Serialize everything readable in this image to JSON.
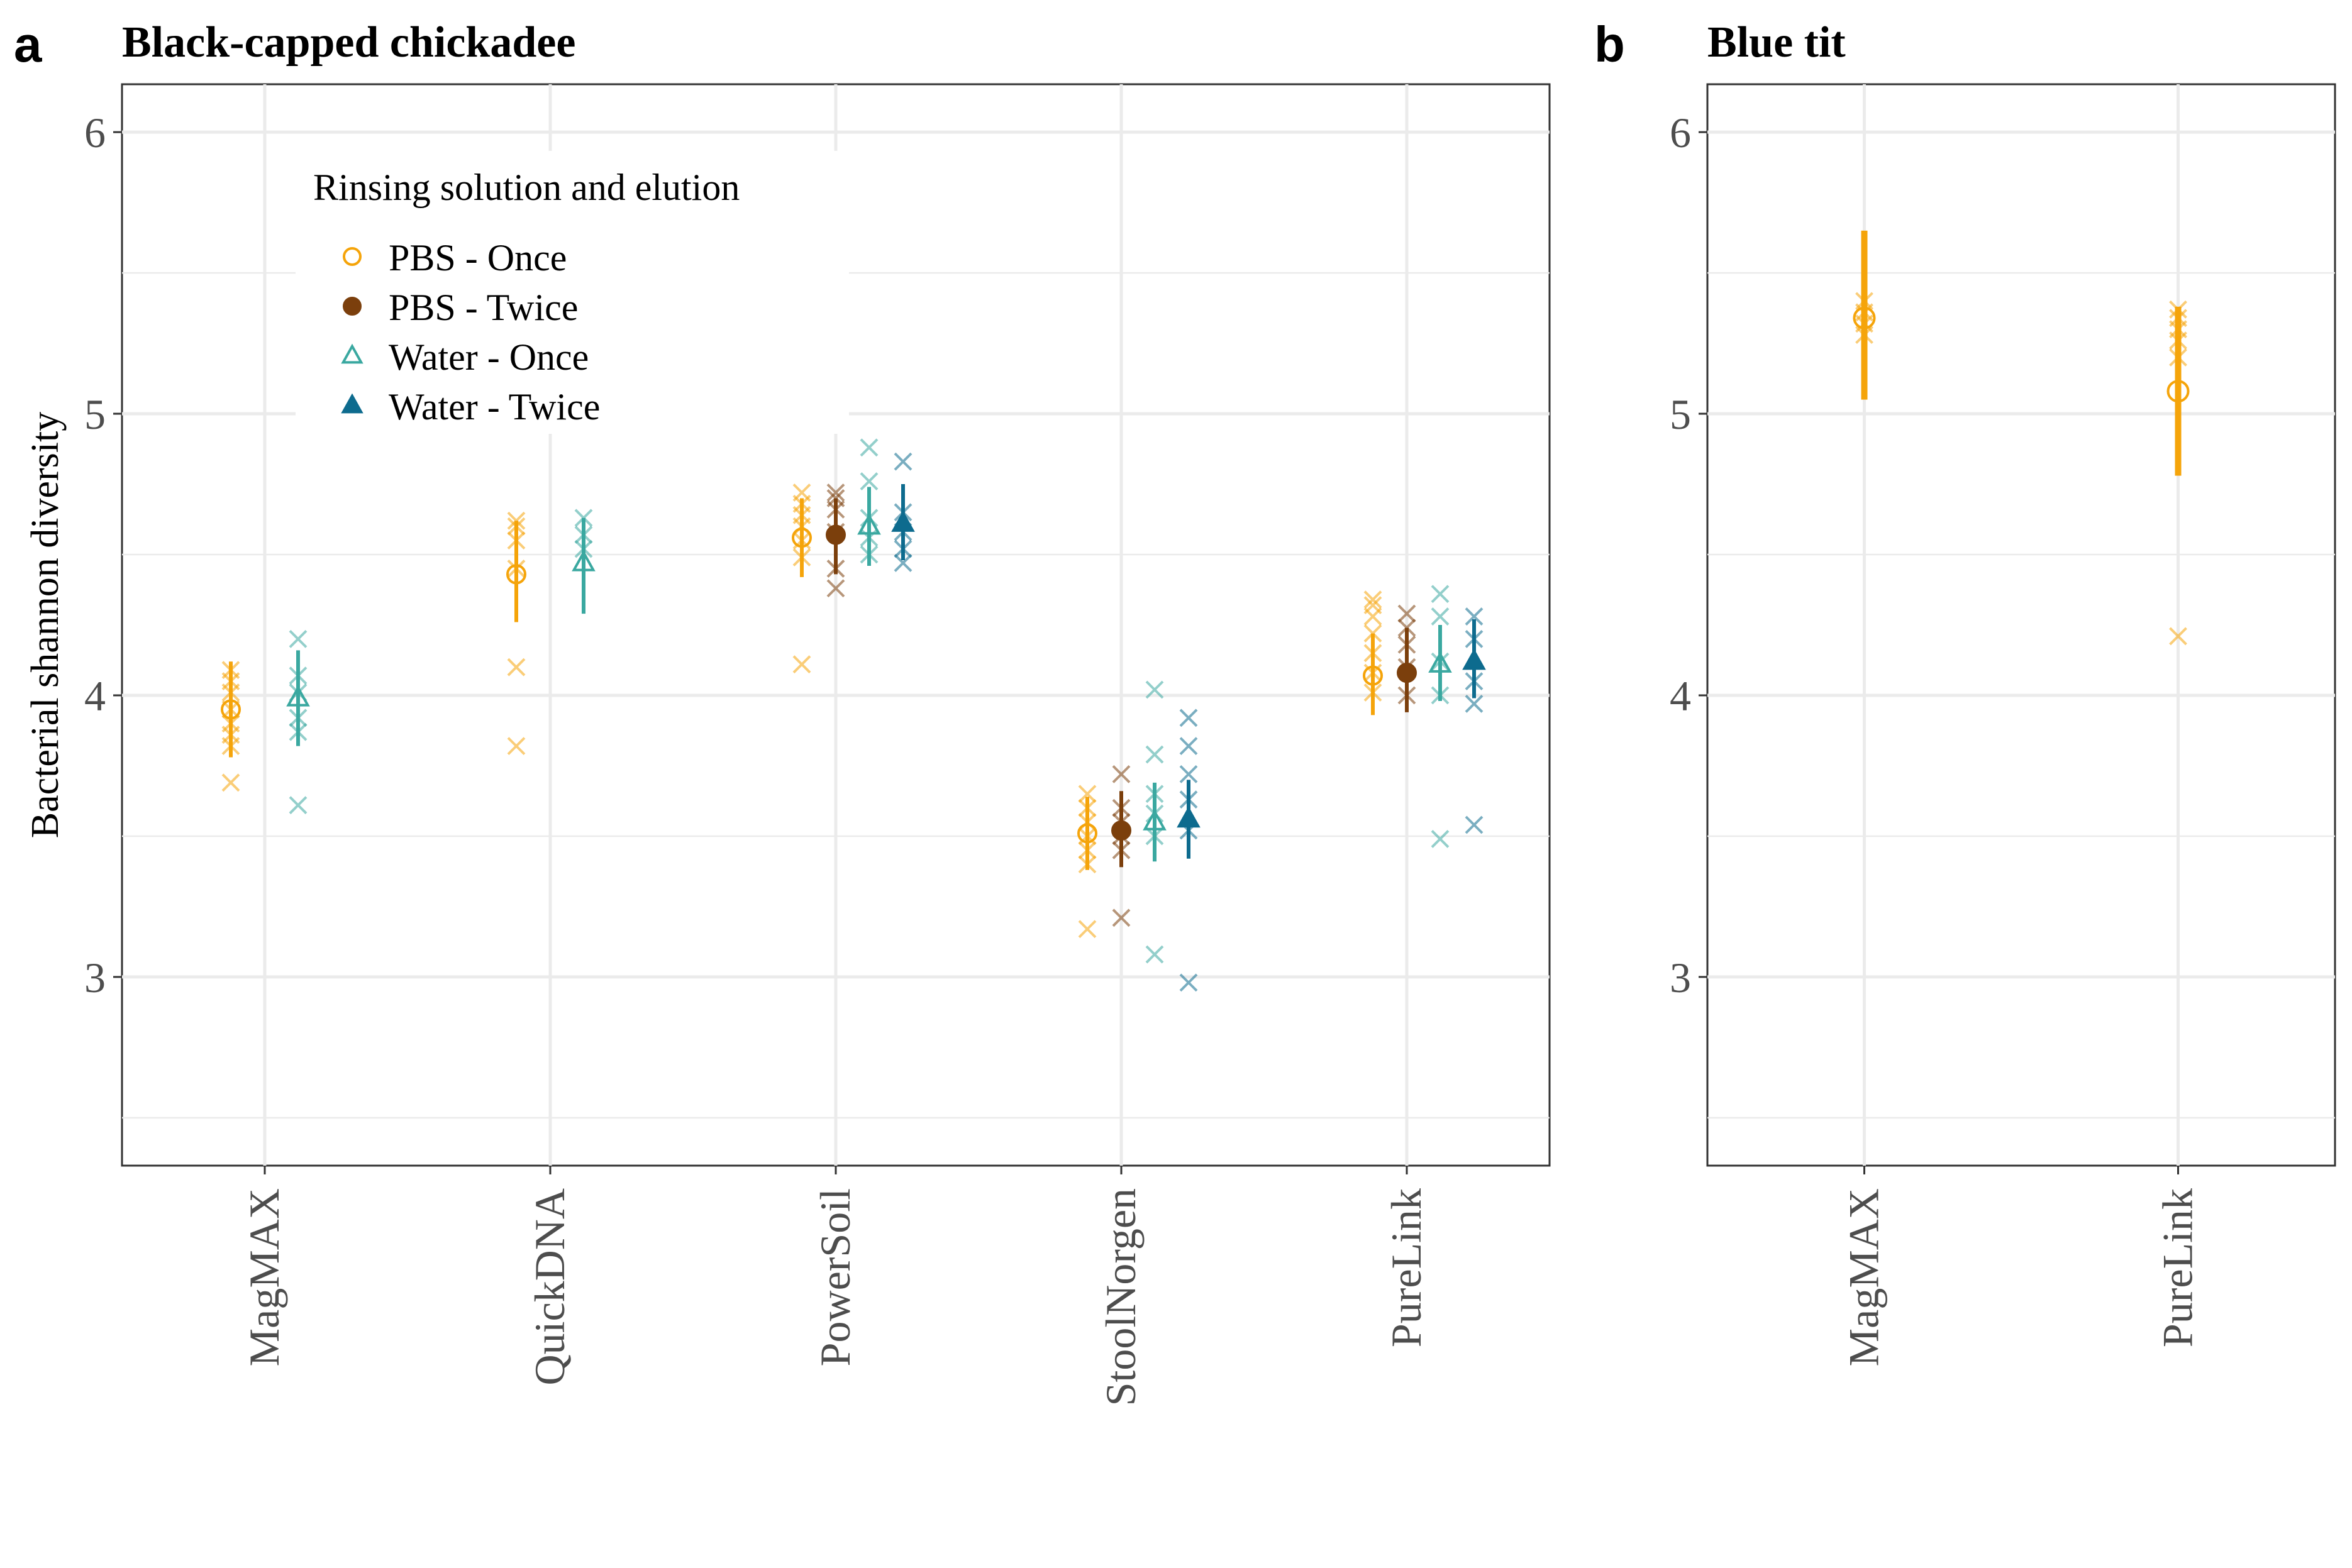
{
  "figure": {
    "y_axis_label": "Bacterial shannon diversity",
    "legend": {
      "title": "Rinsing solution and elution",
      "placement": "top-left inside panel a",
      "entries": [
        {
          "label": "PBS - Once",
          "color": "#f5a40a",
          "shape": "open-circle"
        },
        {
          "label": "PBS - Twice",
          "color": "#7b3f0c",
          "shape": "filled-circle"
        },
        {
          "label": "Water - Once",
          "color": "#3aa8a0",
          "shape": "open-triangle"
        },
        {
          "label": "Water - Twice",
          "color": "#0d6b8e",
          "shape": "filled-triangle"
        }
      ]
    }
  },
  "chart_data": [
    {
      "type": "scatter",
      "panel_letter": "a",
      "title": "Black-capped chickadee",
      "ylabel": "Bacterial shannon diversity",
      "ylim": [
        2.33,
        6.17
      ],
      "yticks": [
        3,
        4,
        5,
        6
      ],
      "grid": true,
      "categories": [
        "MagMAX",
        "QuickDNA",
        "PowerSoil",
        "StoolNorgen",
        "PureLink"
      ],
      "series": [
        {
          "name": "PBS - Once",
          "summary": [
            {
              "category": "MagMAX",
              "mean": 3.95,
              "lower": 3.78,
              "upper": 4.12
            },
            {
              "category": "QuickDNA",
              "mean": 4.43,
              "lower": 4.26,
              "upper": 4.62
            },
            {
              "category": "PowerSoil",
              "mean": 4.56,
              "lower": 4.42,
              "upper": 4.7
            },
            {
              "category": "StoolNorgen",
              "mean": 3.51,
              "lower": 3.38,
              "upper": 3.64
            },
            {
              "category": "PureLink",
              "mean": 4.07,
              "lower": 3.93,
              "upper": 4.22
            }
          ],
          "observations": [
            {
              "category": "MagMAX",
              "values": [
                3.69,
                3.82,
                3.86,
                3.9,
                3.95,
                4.01,
                4.05,
                4.09
              ]
            },
            {
              "category": "QuickDNA",
              "values": [
                3.82,
                4.1,
                4.45,
                4.55,
                4.6,
                4.62
              ]
            },
            {
              "category": "PowerSoil",
              "values": [
                4.11,
                4.49,
                4.55,
                4.6,
                4.64,
                4.68,
                4.72
              ]
            },
            {
              "category": "StoolNorgen",
              "values": [
                3.17,
                3.4,
                3.45,
                3.5,
                3.55,
                3.6,
                3.65
              ]
            },
            {
              "category": "PureLink",
              "values": [
                4.01,
                4.08,
                4.15,
                4.22,
                4.28,
                4.32,
                4.34
              ]
            }
          ]
        },
        {
          "name": "PBS - Twice",
          "summary": [
            {
              "category": "PowerSoil",
              "mean": 4.57,
              "lower": 4.43,
              "upper": 4.7
            },
            {
              "category": "StoolNorgen",
              "mean": 3.52,
              "lower": 3.39,
              "upper": 3.66
            },
            {
              "category": "PureLink",
              "mean": 4.08,
              "lower": 3.94,
              "upper": 4.24
            }
          ],
          "observations": [
            {
              "category": "PowerSoil",
              "values": [
                4.38,
                4.45,
                4.58,
                4.66,
                4.7,
                4.72
              ]
            },
            {
              "category": "StoolNorgen",
              "values": [
                3.21,
                3.45,
                3.5,
                3.55,
                3.6,
                3.72
              ]
            },
            {
              "category": "PureLink",
              "values": [
                4.0,
                4.1,
                4.18,
                4.24,
                4.29
              ]
            }
          ]
        },
        {
          "name": "Water - Once",
          "summary": [
            {
              "category": "MagMAX",
              "mean": 3.99,
              "lower": 3.82,
              "upper": 4.16
            },
            {
              "category": "QuickDNA",
              "mean": 4.47,
              "lower": 4.29,
              "upper": 4.63
            },
            {
              "category": "PowerSoil",
              "mean": 4.6,
              "lower": 4.46,
              "upper": 4.74
            },
            {
              "category": "StoolNorgen",
              "mean": 3.55,
              "lower": 3.41,
              "upper": 3.69
            },
            {
              "category": "PureLink",
              "mean": 4.11,
              "lower": 3.98,
              "upper": 4.25
            }
          ],
          "observations": [
            {
              "category": "MagMAX",
              "values": [
                3.61,
                3.87,
                3.92,
                4.01,
                4.07,
                4.2
              ]
            },
            {
              "category": "QuickDNA",
              "values": [
                4.52,
                4.57,
                4.63
              ]
            },
            {
              "category": "PowerSoil",
              "values": [
                4.5,
                4.56,
                4.63,
                4.76,
                4.88
              ]
            },
            {
              "category": "StoolNorgen",
              "values": [
                3.08,
                3.5,
                3.58,
                3.65,
                3.79,
                4.02
              ]
            },
            {
              "category": "PureLink",
              "values": [
                3.49,
                4.0,
                4.12,
                4.28,
                4.36
              ]
            }
          ]
        },
        {
          "name": "Water - Twice",
          "summary": [
            {
              "category": "PowerSoil",
              "mean": 4.61,
              "lower": 4.48,
              "upper": 4.75
            },
            {
              "category": "StoolNorgen",
              "mean": 3.56,
              "lower": 3.42,
              "upper": 3.7
            },
            {
              "category": "PureLink",
              "mean": 4.12,
              "lower": 3.99,
              "upper": 4.27
            }
          ],
          "observations": [
            {
              "category": "PowerSoil",
              "values": [
                4.47,
                4.52,
                4.58,
                4.65,
                4.83
              ]
            },
            {
              "category": "StoolNorgen",
              "values": [
                2.98,
                3.52,
                3.63,
                3.72,
                3.82,
                3.92
              ]
            },
            {
              "category": "PureLink",
              "values": [
                3.54,
                3.97,
                4.05,
                4.2,
                4.28
              ]
            }
          ]
        }
      ]
    },
    {
      "type": "scatter",
      "panel_letter": "b",
      "title": "Blue tit",
      "ylim": [
        2.33,
        6.17
      ],
      "yticks": [
        3,
        4,
        5,
        6
      ],
      "grid": true,
      "categories": [
        "MagMAX",
        "PureLink"
      ],
      "series": [
        {
          "name": "PBS - Once",
          "summary": [
            {
              "category": "MagMAX",
              "mean": 5.34,
              "lower": 5.05,
              "upper": 5.65
            },
            {
              "category": "PureLink",
              "mean": 5.08,
              "lower": 4.78,
              "upper": 5.38
            }
          ],
          "observations": [
            {
              "category": "MagMAX",
              "values": [
                5.28,
                5.32,
                5.36,
                5.4
              ]
            },
            {
              "category": "PureLink",
              "values": [
                4.21,
                5.2,
                5.26,
                5.3,
                5.34,
                5.37
              ]
            }
          ]
        }
      ]
    }
  ]
}
